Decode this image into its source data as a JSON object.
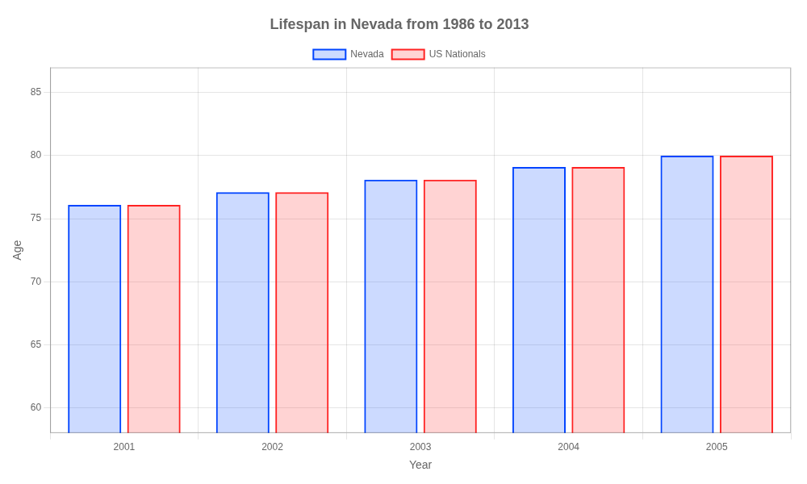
{
  "chart_data": {
    "type": "bar",
    "title": "Lifespan in Nevada from 1986 to 2013",
    "xlabel": "Year",
    "ylabel": "Age",
    "categories": [
      "2001",
      "2002",
      "2003",
      "2004",
      "2005"
    ],
    "series": [
      {
        "name": "Nevada",
        "color": "#0044ff",
        "values": [
          76.1,
          77.1,
          78.1,
          79.1,
          80.0
        ]
      },
      {
        "name": "US Nationals",
        "color": "#ff2222",
        "values": [
          76.1,
          77.1,
          78.1,
          79.1,
          80.0
        ]
      }
    ],
    "ylim": [
      58,
      87
    ],
    "yticks": [
      60,
      65,
      70,
      75,
      80,
      85
    ],
    "grid": true,
    "legend": "top"
  }
}
